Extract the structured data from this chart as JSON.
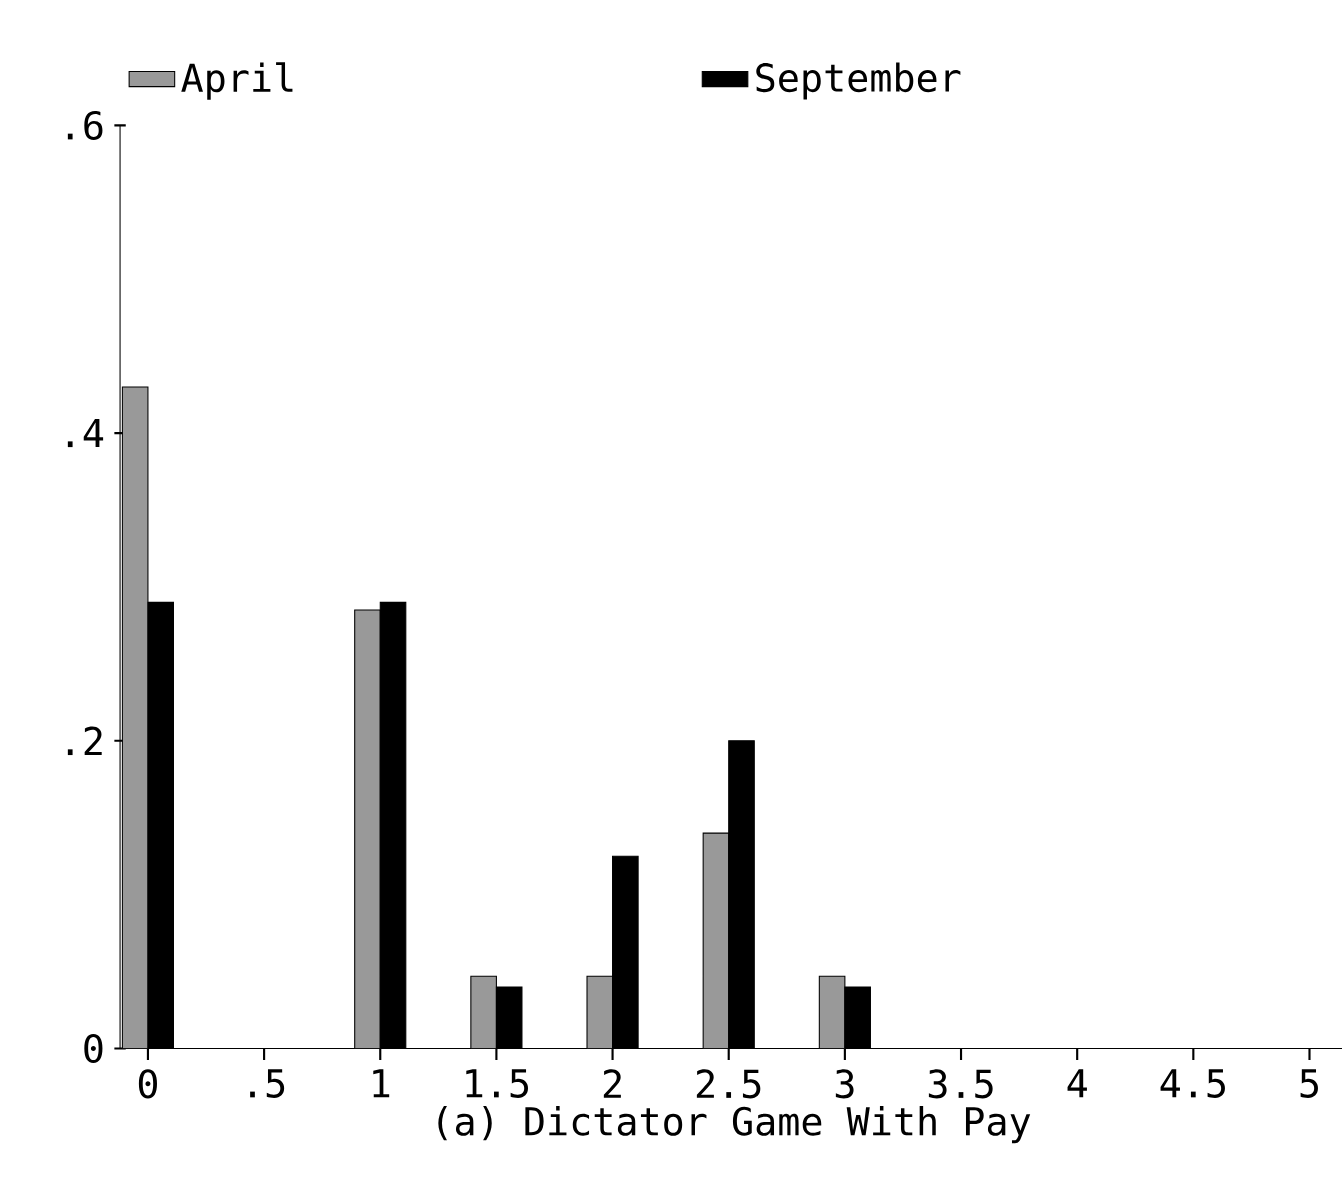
{
  "chart_data": {
    "type": "bar",
    "xlabel": "(a) Dictator Game With Pay",
    "x": [
      0,
      0.5,
      1,
      1.5,
      2,
      2.5,
      3,
      3.5,
      4,
      4.5,
      5
    ],
    "series": [
      {
        "name": "April",
        "color": "#999999",
        "values": [
          0.43,
          0,
          0.285,
          0.047,
          0.047,
          0.14,
          0.047,
          0,
          0,
          0,
          0
        ]
      },
      {
        "name": "September",
        "color": "#000000",
        "values": [
          0.29,
          0,
          0.29,
          0.04,
          0.125,
          0.2,
          0.04,
          0,
          0,
          0,
          0
        ]
      }
    ],
    "xlim": [
      -0.12,
      5.14
    ],
    "ylim": [
      0,
      0.6
    ],
    "xticks": [
      0,
      {
        "value": 0.5,
        "label": ".5"
      },
      1,
      1.5,
      2,
      2.5,
      3,
      3.5,
      4,
      4.5,
      5
    ],
    "yticks": [
      0,
      {
        "value": 0.2,
        "label": ".2"
      },
      {
        "value": 0.4,
        "label": ".4"
      },
      {
        "value": 0.6,
        "label": ".6"
      }
    ],
    "legend": "top",
    "grid": false
  }
}
